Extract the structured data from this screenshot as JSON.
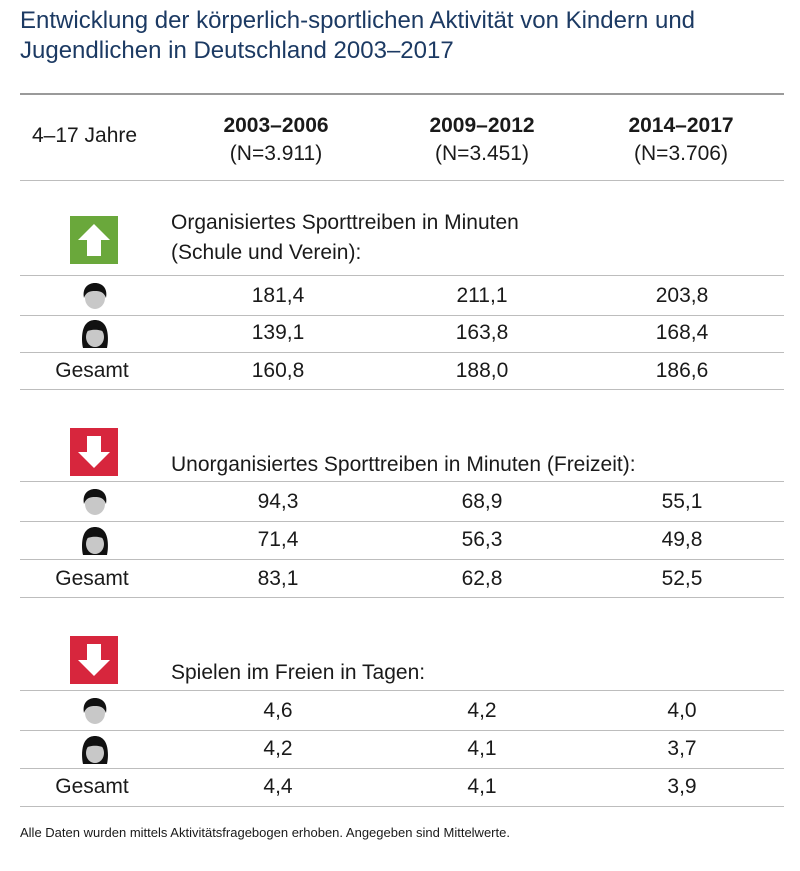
{
  "title": "Entwicklung der körperlich-sportlichen Aktivität von Kindern und Jugendlichen in Deutschland 2003–2017",
  "header": {
    "age_label": "4–17 Jahre",
    "columns": [
      {
        "period": "2003–2006",
        "n": "(N=3.911)"
      },
      {
        "period": "2009–2012",
        "n": "(N=3.451)"
      },
      {
        "period": "2014–2017",
        "n": "(N=3.706)"
      }
    ]
  },
  "colors": {
    "title": "#1c3a63",
    "up": "#6aa83b",
    "down": "#d7263d"
  },
  "sections": [
    {
      "title_line1": "Organisiertes Sporttreiben in Minuten",
      "title_line2": "(Schule und Verein):",
      "trend_icon": "arrow-up-icon",
      "rows": {
        "boys": [
          "181,4",
          "211,1",
          "203,8"
        ],
        "girls": [
          "139,1",
          "163,8",
          "168,4"
        ],
        "total_label": "Gesamt",
        "total": [
          "160,8",
          "188,0",
          "186,6"
        ]
      }
    },
    {
      "title_line1": "Unorganisiertes Sporttreiben in Minuten (Freizeit):",
      "title_line2": "",
      "trend_icon": "arrow-down-icon",
      "rows": {
        "boys": [
          "94,3",
          "68,9",
          "55,1"
        ],
        "girls": [
          "71,4",
          "56,3",
          "49,8"
        ],
        "total_label": "Gesamt",
        "total": [
          "83,1",
          "62,8",
          "52,5"
        ]
      }
    },
    {
      "title_line1": "Spielen im Freien in Tagen:",
      "title_line2": "",
      "trend_icon": "arrow-down-icon",
      "rows": {
        "boys": [
          "4,6",
          "4,2",
          "4,0"
        ],
        "girls": [
          "4,2",
          "4,1",
          "3,7"
        ],
        "total_label": "Gesamt",
        "total": [
          "4,4",
          "4,1",
          "3,9"
        ]
      }
    }
  ],
  "footnote": "Alle Daten wurden mittels Aktivitätsfragebogen erhoben. Angegeben sind Mittelwerte.",
  "chart_data": {
    "type": "table",
    "title": "Entwicklung der körperlich-sportlichen Aktivität von Kindern und Jugendlichen in Deutschland 2003–2017",
    "columns": [
      "2003–2006",
      "2009–2012",
      "2014–2017"
    ],
    "tables": [
      {
        "name": "Organisiertes Sporttreiben in Minuten (Schule und Verein)",
        "trend": "up",
        "series": [
          {
            "values": [
              181.4,
              211.1,
              203.8
            ]
          },
          {
            "values": [
              139.1,
              163.8,
              168.4
            ]
          },
          {
            "name": "Gesamt",
            "values": [
              160.8,
              188.0,
              186.6
            ]
          }
        ]
      },
      {
        "name": "Unorganisiertes Sporttreiben in Minuten (Freizeit)",
        "trend": "down",
        "series": [
          {
            "values": [
              94.3,
              68.9,
              55.1
            ]
          },
          {
            "values": [
              71.4,
              56.3,
              49.8
            ]
          },
          {
            "name": "Gesamt",
            "values": [
              83.1,
              62.8,
              52.5
            ]
          }
        ]
      },
      {
        "name": "Spielen im Freien in Tagen",
        "trend": "down",
        "series": [
          {
            "values": [
              4.6,
              4.2,
              4.0
            ]
          },
          {
            "values": [
              4.2,
              4.1,
              3.7
            ]
          },
          {
            "name": "Gesamt",
            "values": [
              4.4,
              4.1,
              3.9
            ]
          }
        ]
      }
    ]
  }
}
